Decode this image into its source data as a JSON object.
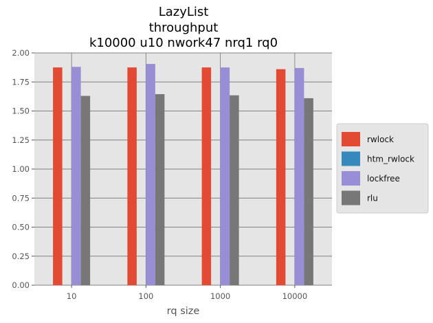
{
  "chart_data": {
    "type": "bar",
    "title_lines": [
      "LazyList",
      "throughput",
      "k10000 u10 nwork47 nrq1 rq0"
    ],
    "xlabel": "rq size",
    "ylabel": "",
    "categories": [
      "10",
      "100",
      "1000",
      "10000"
    ],
    "series": [
      {
        "name": "rwlock",
        "color": "#E24A33",
        "values": [
          1.875,
          1.875,
          1.875,
          1.86
        ]
      },
      {
        "name": "htm_rwlock",
        "color": "#348ABD",
        "values": [
          0,
          0,
          0,
          0
        ]
      },
      {
        "name": "lockfree",
        "color": "#988ED5",
        "values": [
          1.88,
          1.905,
          1.875,
          1.87
        ]
      },
      {
        "name": "rlu",
        "color": "#777777",
        "values": [
          1.63,
          1.645,
          1.635,
          1.61
        ]
      }
    ],
    "ylim": [
      0,
      2.0
    ],
    "yticks": [
      "0.00",
      "0.25",
      "0.50",
      "0.75",
      "1.00",
      "1.25",
      "1.50",
      "1.75",
      "2.00"
    ],
    "grid": true,
    "legend_position": "right",
    "style": {
      "plot_background": "#E5E5E5",
      "grid_color": "#808080"
    }
  }
}
